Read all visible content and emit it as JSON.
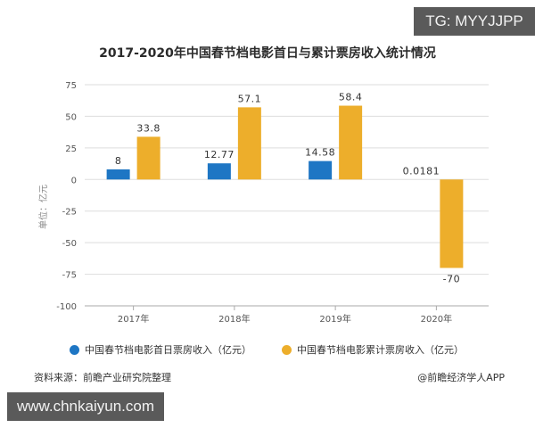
{
  "title": "2017-2020年中国春节档电影首日与累计票房收入统计情况",
  "badges": {
    "tg": "TG: MYYJJPP",
    "site": "www.chnkaiyun.com"
  },
  "footer": {
    "source": "资料来源：前瞻产业研究院整理",
    "credit": "@前瞻经济学人APP"
  },
  "colors": {
    "first_day": "#1E76C4",
    "cumulative": "#EDAE2B",
    "grid": "#dddddd"
  },
  "chart_data": {
    "type": "bar",
    "title": "2017-2020年中国春节档电影首日与累计票房收入统计情况",
    "xlabel": "",
    "ylabel": "单位：亿元",
    "categories": [
      "2017年",
      "2018年",
      "2019年",
      "2020年"
    ],
    "series": [
      {
        "name": "中国春节档电影首日票房收入（亿元）",
        "values": [
          8,
          12.77,
          14.58,
          0.0181
        ],
        "labels": [
          "8",
          "12.77",
          "14.58",
          "0.0181"
        ]
      },
      {
        "name": "中国春节档电影累计票房收入（亿元）",
        "values": [
          33.8,
          57.1,
          58.4,
          -70
        ],
        "labels": [
          "33.8",
          "57.1",
          "58.4",
          "-70"
        ]
      }
    ],
    "ylim": [
      -100,
      75
    ],
    "yticks": [
      75,
      50,
      25,
      0,
      -25,
      -50,
      -75,
      -100
    ],
    "grid": true,
    "legend_position": "bottom"
  }
}
